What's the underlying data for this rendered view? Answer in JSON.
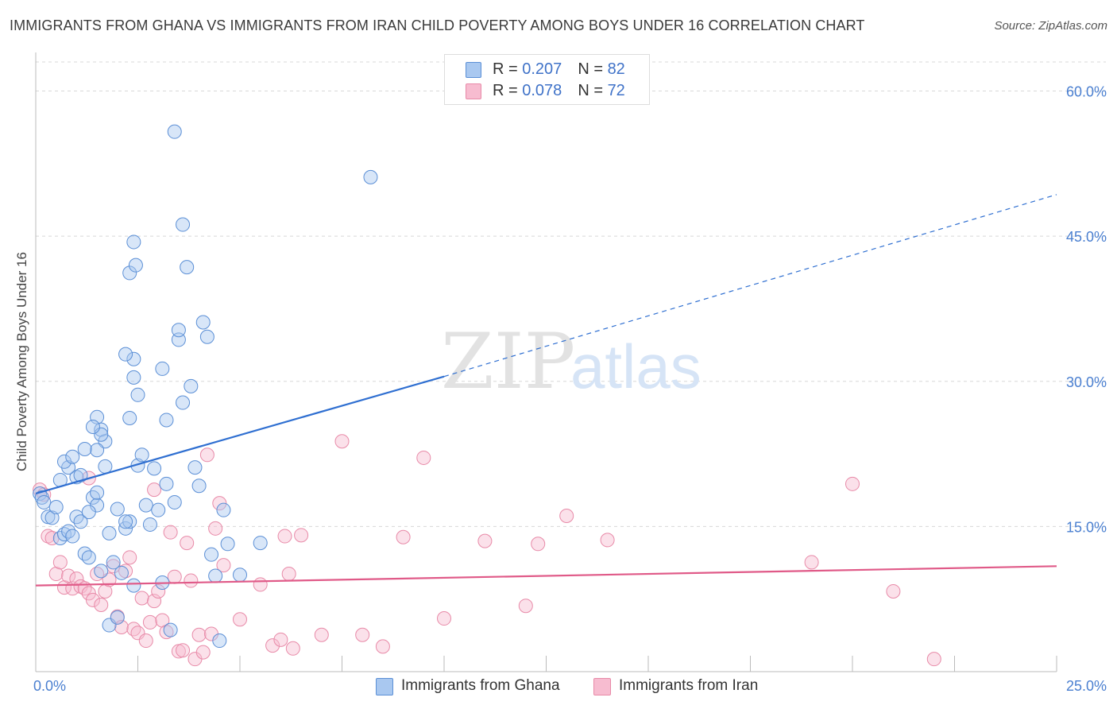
{
  "title": "IMMIGRANTS FROM GHANA VS IMMIGRANTS FROM IRAN CHILD POVERTY AMONG BOYS UNDER 16 CORRELATION CHART",
  "source": "Source: ZipAtlas.com",
  "watermark": {
    "zip": "ZIP",
    "atlas": "atlas"
  },
  "legend": {
    "ghana": {
      "r_label": "R = ",
      "r_value": "0.207",
      "n_label": "N = ",
      "n_value": "82"
    },
    "iran": {
      "r_label": "R = ",
      "r_value": "0.078",
      "n_label": "N = ",
      "n_value": "72"
    }
  },
  "colors": {
    "ghana_fill": "#a9c8f0",
    "ghana_stroke": "#5b8fd6",
    "ghana_line": "#2f6fd1",
    "iran_fill": "#f7bcd0",
    "iran_stroke": "#e88aa8",
    "iran_line": "#e05a88",
    "grid": "#d8d8d8",
    "tick_text": "#4a7fd0"
  },
  "chart_data": {
    "type": "scatter",
    "title": "IMMIGRANTS FROM GHANA VS IMMIGRANTS FROM IRAN CHILD POVERTY AMONG BOYS UNDER 16 CORRELATION CHART",
    "xlabel": "",
    "ylabel": "Child Poverty Among Boys Under 16",
    "xlim": [
      0,
      25
    ],
    "ylim": [
      0,
      63
    ],
    "x_tick_labels": [
      "0.0%",
      "25.0%"
    ],
    "y_ticks": [
      15,
      30,
      45,
      60
    ],
    "y_tick_labels": [
      "15.0%",
      "30.0%",
      "45.0%",
      "60.0%"
    ],
    "grid": true,
    "legend_position": "top-center",
    "series": [
      {
        "name": "Immigrants from Ghana",
        "R": 0.207,
        "N": 82,
        "trend": {
          "x": [
            0,
            10
          ],
          "y": [
            18.4,
            30.5
          ],
          "dashed_extension_to": [
            25,
            49.3
          ]
        },
        "points": [
          [
            0.1,
            18.4
          ],
          [
            0.15,
            18.0
          ],
          [
            0.2,
            17.5
          ],
          [
            0.3,
            16.0
          ],
          [
            0.4,
            15.9
          ],
          [
            0.5,
            17.0
          ],
          [
            0.6,
            13.8
          ],
          [
            0.7,
            14.2
          ],
          [
            0.8,
            14.5
          ],
          [
            0.9,
            14.0
          ],
          [
            1.0,
            16.0
          ],
          [
            1.1,
            15.5
          ],
          [
            1.2,
            12.2
          ],
          [
            1.3,
            11.8
          ],
          [
            1.4,
            18.0
          ],
          [
            1.5,
            17.2
          ],
          [
            1.6,
            10.4
          ],
          [
            1.7,
            21.2
          ],
          [
            1.8,
            14.3
          ],
          [
            1.9,
            11.3
          ],
          [
            2.0,
            16.8
          ],
          [
            2.1,
            10.2
          ],
          [
            2.2,
            14.8
          ],
          [
            2.3,
            15.5
          ],
          [
            2.4,
            8.9
          ],
          [
            2.5,
            21.3
          ],
          [
            2.6,
            22.4
          ],
          [
            2.7,
            17.2
          ],
          [
            2.8,
            15.2
          ],
          [
            2.9,
            21.0
          ],
          [
            3.0,
            16.7
          ],
          [
            3.1,
            9.2
          ],
          [
            3.2,
            19.4
          ],
          [
            3.3,
            4.3
          ],
          [
            3.4,
            17.5
          ],
          [
            3.5,
            34.3
          ],
          [
            3.6,
            46.2
          ],
          [
            3.7,
            41.8
          ],
          [
            3.8,
            29.5
          ],
          [
            3.9,
            21.1
          ],
          [
            4.0,
            19.2
          ],
          [
            4.1,
            36.1
          ],
          [
            4.2,
            34.6
          ],
          [
            4.3,
            12.1
          ],
          [
            4.4,
            9.9
          ],
          [
            4.5,
            3.2
          ],
          [
            4.6,
            16.7
          ],
          [
            4.7,
            13.2
          ],
          [
            5.0,
            10.0
          ],
          [
            5.5,
            13.3
          ],
          [
            2.3,
            41.2
          ],
          [
            2.4,
            30.4
          ],
          [
            2.5,
            28.6
          ],
          [
            2.4,
            32.3
          ],
          [
            2.2,
            32.8
          ],
          [
            2.45,
            42.0
          ],
          [
            2.4,
            44.4
          ],
          [
            2.3,
            26.2
          ],
          [
            1.6,
            25.0
          ],
          [
            1.5,
            26.3
          ],
          [
            1.7,
            23.8
          ],
          [
            1.6,
            24.5
          ],
          [
            1.5,
            22.9
          ],
          [
            1.4,
            25.3
          ],
          [
            1.2,
            23.0
          ],
          [
            1.0,
            20.1
          ],
          [
            0.8,
            21.1
          ],
          [
            0.7,
            21.7
          ],
          [
            0.6,
            19.8
          ],
          [
            0.9,
            22.2
          ],
          [
            1.1,
            20.3
          ],
          [
            1.3,
            16.5
          ],
          [
            1.5,
            18.5
          ],
          [
            1.8,
            4.8
          ],
          [
            2.0,
            5.6
          ],
          [
            2.2,
            15.5
          ],
          [
            3.1,
            31.3
          ],
          [
            3.2,
            26.0
          ],
          [
            3.4,
            55.8
          ],
          [
            3.5,
            35.3
          ],
          [
            3.6,
            27.8
          ],
          [
            8.2,
            51.1
          ]
        ]
      },
      {
        "name": "Immigrants from Iran",
        "R": 0.078,
        "N": 72,
        "trend": {
          "x": [
            0,
            25
          ],
          "y": [
            8.9,
            10.9
          ]
        },
        "points": [
          [
            0.1,
            18.8
          ],
          [
            0.2,
            18.3
          ],
          [
            0.3,
            14.0
          ],
          [
            0.5,
            10.1
          ],
          [
            0.7,
            8.7
          ],
          [
            0.8,
            9.9
          ],
          [
            0.9,
            8.6
          ],
          [
            1.0,
            9.6
          ],
          [
            1.1,
            8.8
          ],
          [
            1.2,
            8.6
          ],
          [
            1.3,
            8.1
          ],
          [
            1.4,
            7.4
          ],
          [
            1.5,
            10.1
          ],
          [
            1.6,
            6.9
          ],
          [
            1.7,
            8.3
          ],
          [
            1.8,
            9.5
          ],
          [
            1.9,
            10.9
          ],
          [
            2.0,
            5.7
          ],
          [
            2.1,
            4.6
          ],
          [
            2.2,
            10.4
          ],
          [
            2.3,
            11.8
          ],
          [
            2.4,
            4.4
          ],
          [
            2.5,
            4.0
          ],
          [
            2.6,
            7.6
          ],
          [
            2.7,
            3.2
          ],
          [
            2.8,
            5.1
          ],
          [
            2.9,
            7.3
          ],
          [
            3.0,
            8.3
          ],
          [
            3.1,
            5.3
          ],
          [
            3.2,
            4.1
          ],
          [
            3.3,
            14.4
          ],
          [
            3.4,
            9.8
          ],
          [
            3.5,
            2.1
          ],
          [
            3.6,
            2.2
          ],
          [
            3.7,
            13.3
          ],
          [
            3.8,
            9.4
          ],
          [
            3.9,
            1.3
          ],
          [
            4.0,
            3.8
          ],
          [
            4.1,
            2.0
          ],
          [
            4.2,
            22.4
          ],
          [
            4.3,
            3.9
          ],
          [
            4.4,
            14.8
          ],
          [
            4.5,
            17.4
          ],
          [
            4.6,
            11.0
          ],
          [
            5.0,
            5.4
          ],
          [
            5.5,
            9.0
          ],
          [
            5.8,
            2.7
          ],
          [
            6.0,
            3.3
          ],
          [
            6.1,
            14.0
          ],
          [
            6.2,
            10.1
          ],
          [
            6.3,
            2.4
          ],
          [
            6.5,
            14.1
          ],
          [
            7.0,
            3.8
          ],
          [
            7.5,
            23.8
          ],
          [
            8.0,
            3.8
          ],
          [
            8.5,
            2.6
          ],
          [
            9.0,
            13.9
          ],
          [
            9.5,
            22.1
          ],
          [
            10.0,
            5.5
          ],
          [
            11.0,
            13.5
          ],
          [
            12.0,
            6.8
          ],
          [
            12.3,
            13.2
          ],
          [
            13.0,
            16.1
          ],
          [
            14.0,
            13.6
          ],
          [
            19.0,
            11.3
          ],
          [
            20.0,
            19.4
          ],
          [
            21.0,
            8.3
          ],
          [
            22.0,
            1.3
          ],
          [
            0.4,
            13.8
          ],
          [
            0.6,
            11.3
          ],
          [
            2.9,
            18.8
          ],
          [
            1.3,
            20.0
          ]
        ]
      }
    ]
  }
}
